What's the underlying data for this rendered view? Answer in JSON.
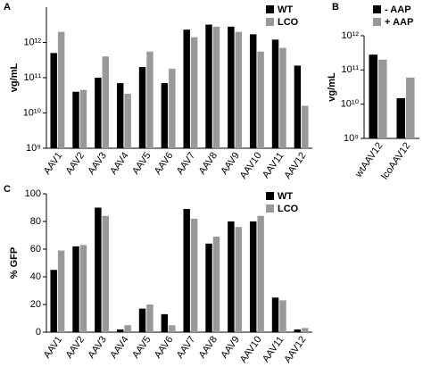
{
  "chart_data": [
    {
      "type": "bar",
      "panel_label": "A",
      "y_label": "vg/mL",
      "yscale": "log",
      "legend": "top-right",
      "categories": [
        "AAV1",
        "AAV2",
        "AAV3",
        "AAV4",
        "AAV5",
        "AAV6",
        "AAV7",
        "AAV8",
        "AAV9",
        "AAV10",
        "AAV11",
        "AAV12"
      ],
      "series": [
        {
          "name": "WT",
          "color": "#000000",
          "values": [
            500000000000.0,
            40000000000.0,
            100000000000.0,
            70000000000.0,
            200000000000.0,
            70000000000.0,
            2300000000000.0,
            3200000000000.0,
            2800000000000.0,
            1700000000000.0,
            1200000000000.0,
            220000000000.0
          ]
        },
        {
          "name": "LCO",
          "color": "#999999",
          "values": [
            2000000000000.0,
            45000000000.0,
            400000000000.0,
            35000000000.0,
            550000000000.0,
            180000000000.0,
            1400000000000.0,
            2800000000000.0,
            2000000000000.0,
            550000000000.0,
            700000000000.0,
            16000000000.0
          ]
        }
      ],
      "ylim": [
        1000000000.0,
        10000000000000.0
      ],
      "yticks": [
        {
          "value": 1000000000.0,
          "label": "10⁹"
        },
        {
          "value": 10000000000.0,
          "label": "10¹⁰"
        },
        {
          "value": 100000000000.0,
          "label": "10¹¹"
        },
        {
          "value": 1000000000000.0,
          "label": "10¹²"
        }
      ]
    },
    {
      "type": "bar",
      "panel_label": "B",
      "y_label": "vg/mL",
      "yscale": "log",
      "legend": "top-right",
      "categories": [
        "wtAAV12",
        "lcoAAV12"
      ],
      "series": [
        {
          "name": "- AAP",
          "color": "#000000",
          "values": [
            280000000000.0,
            15000000000.0
          ]
        },
        {
          "name": "+ AAP",
          "color": "#999999",
          "values": [
            200000000000.0,
            60000000000.0
          ]
        }
      ],
      "ylim": [
        1000000000.0,
        1000000000000.0
      ],
      "yticks": [
        {
          "value": 1000000000.0,
          "label": "10⁹"
        },
        {
          "value": 10000000000.0,
          "label": "10¹⁰"
        },
        {
          "value": 100000000000.0,
          "label": "10¹¹"
        },
        {
          "value": 1000000000000.0,
          "label": "10¹²"
        }
      ]
    },
    {
      "type": "bar",
      "panel_label": "C",
      "y_label": "% GFP",
      "yscale": "linear",
      "legend": "top-right",
      "categories": [
        "AAV1",
        "AAV2",
        "AAV3",
        "AAV4",
        "AAV5",
        "AAV6",
        "AAV7",
        "AAV8",
        "AAV9",
        "AAV10",
        "AAV11",
        "AAV12"
      ],
      "series": [
        {
          "name": "WT",
          "color": "#000000",
          "values": [
            45,
            62,
            90,
            2,
            17,
            13,
            89,
            64,
            80,
            80,
            25,
            2
          ]
        },
        {
          "name": "LCO",
          "color": "#999999",
          "values": [
            59,
            63,
            84,
            5,
            20,
            5,
            82,
            69,
            76,
            84,
            23,
            3
          ]
        }
      ],
      "ylim": [
        0,
        100
      ],
      "yticks": [
        0,
        20,
        40,
        60,
        80,
        100
      ]
    }
  ]
}
